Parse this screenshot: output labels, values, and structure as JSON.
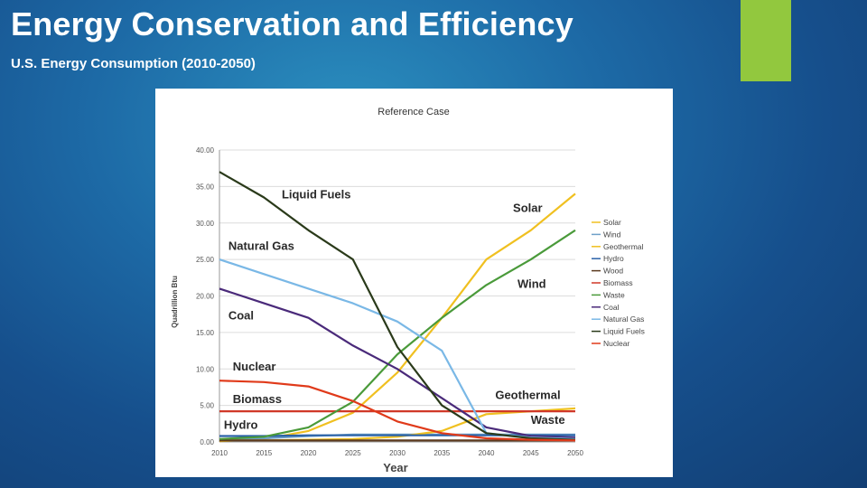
{
  "slide": {
    "title": "Energy Conservation and Efficiency",
    "subtitle": "U.S. Energy Consumption (2010-2050)",
    "accent_color": "#92c83e"
  },
  "chart_data": {
    "type": "line",
    "title": "Reference Case",
    "xlabel": "Year",
    "ylabel": "Quadrillion Btu",
    "x": [
      2010,
      2015,
      2020,
      2025,
      2030,
      2035,
      2040,
      2045,
      2050
    ],
    "xlim": [
      2010,
      2050
    ],
    "ylim": [
      0,
      40
    ],
    "y_ticks": [
      "0.00",
      "5.00",
      "10.00",
      "15.00",
      "20.00",
      "25.00",
      "30.00",
      "35.00",
      "40.00"
    ],
    "grid": "horizontal",
    "legend_position": "right",
    "series": [
      {
        "name": "Solar",
        "color": "#f0c020",
        "values": [
          0.1,
          0.4,
          1.5,
          4.0,
          9.5,
          17.0,
          25.0,
          29.0,
          34.0
        ]
      },
      {
        "name": "Wind",
        "color": "#6ea0c8",
        "values": [
          0.3,
          0.5,
          0.8,
          1.0,
          1.0,
          1.0,
          1.0,
          1.0,
          1.0
        ]
      },
      {
        "name": "Geothermal",
        "color": "#f0c020",
        "values": [
          0.2,
          0.2,
          0.3,
          0.4,
          0.7,
          1.5,
          3.8,
          4.2,
          4.6
        ]
      },
      {
        "name": "Hydro",
        "color": "#2a62a8",
        "values": [
          0.8,
          0.8,
          0.9,
          0.9,
          0.9,
          0.9,
          0.9,
          0.9,
          0.9
        ]
      },
      {
        "name": "Wood",
        "color": "#5c3a1e",
        "values": [
          0.2,
          0.2,
          0.2,
          0.2,
          0.2,
          0.2,
          0.2,
          0.2,
          0.2
        ]
      },
      {
        "name": "Biomass",
        "color": "#d03828",
        "values": [
          4.2,
          4.2,
          4.2,
          4.2,
          4.2,
          4.2,
          4.2,
          4.2,
          4.2
        ]
      },
      {
        "name": "Waste",
        "color": "#4a9a3a",
        "values": [
          0.4,
          0.7,
          2.0,
          5.5,
          12.0,
          17.0,
          21.5,
          25.0,
          29.0
        ]
      },
      {
        "name": "Coal",
        "color": "#4a2a7a",
        "values": [
          21.0,
          19.0,
          17.0,
          13.2,
          10.0,
          6.0,
          2.0,
          0.8,
          0.6
        ]
      },
      {
        "name": "Natural Gas",
        "color": "#7ab8e6",
        "values": [
          25.0,
          23.0,
          21.0,
          19.0,
          16.5,
          12.5,
          1.2,
          0.6,
          0.4
        ]
      },
      {
        "name": "Liquid Fuels",
        "color": "#2a3a1a",
        "values": [
          37.0,
          33.5,
          29.0,
          25.0,
          13.0,
          5.0,
          1.2,
          0.5,
          0.3
        ]
      },
      {
        "name": "Nuclear",
        "color": "#e03a1a",
        "values": [
          8.4,
          8.2,
          7.6,
          5.6,
          2.8,
          1.2,
          0.5,
          0.3,
          0.2
        ]
      }
    ],
    "annotations": [
      {
        "text": "Liquid Fuels",
        "x": 2017,
        "y": 33.4
      },
      {
        "text": "Natural Gas",
        "x": 2011,
        "y": 26.3
      },
      {
        "text": "Coal",
        "x": 2011,
        "y": 16.8
      },
      {
        "text": "Nuclear",
        "x": 2011.5,
        "y": 9.8
      },
      {
        "text": "Biomass",
        "x": 2011.5,
        "y": 5.3
      },
      {
        "text": "Hydro",
        "x": 2010.5,
        "y": 1.8
      },
      {
        "text": "Solar",
        "x": 2043,
        "y": 31.5
      },
      {
        "text": "Wind",
        "x": 2043.5,
        "y": 21.1
      },
      {
        "text": "Geothermal",
        "x": 2041,
        "y": 5.9
      },
      {
        "text": "Waste",
        "x": 2045,
        "y": 2.5
      }
    ]
  }
}
